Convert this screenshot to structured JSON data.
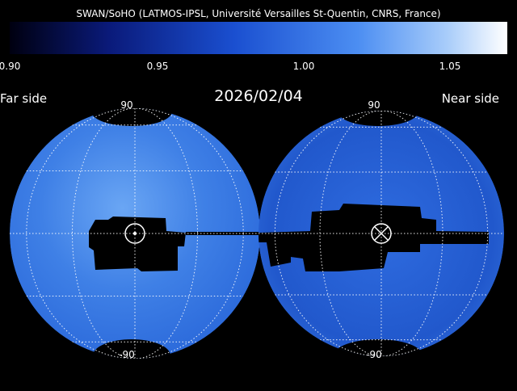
{
  "header": {
    "title": "SWAN/SoHO (LATMOS-IPSL, Université Versailles St-Quentin, CNRS, France)"
  },
  "colorbar": {
    "ticks": [
      "0.90",
      "0.95",
      "1.00",
      "1.05"
    ]
  },
  "date": "2026/02/04",
  "left_label": "Far side",
  "right_label": "Near side",
  "maps": [
    {
      "top": "90",
      "bottom": "-90"
    },
    {
      "top": "90",
      "bottom": "-90"
    }
  ]
}
